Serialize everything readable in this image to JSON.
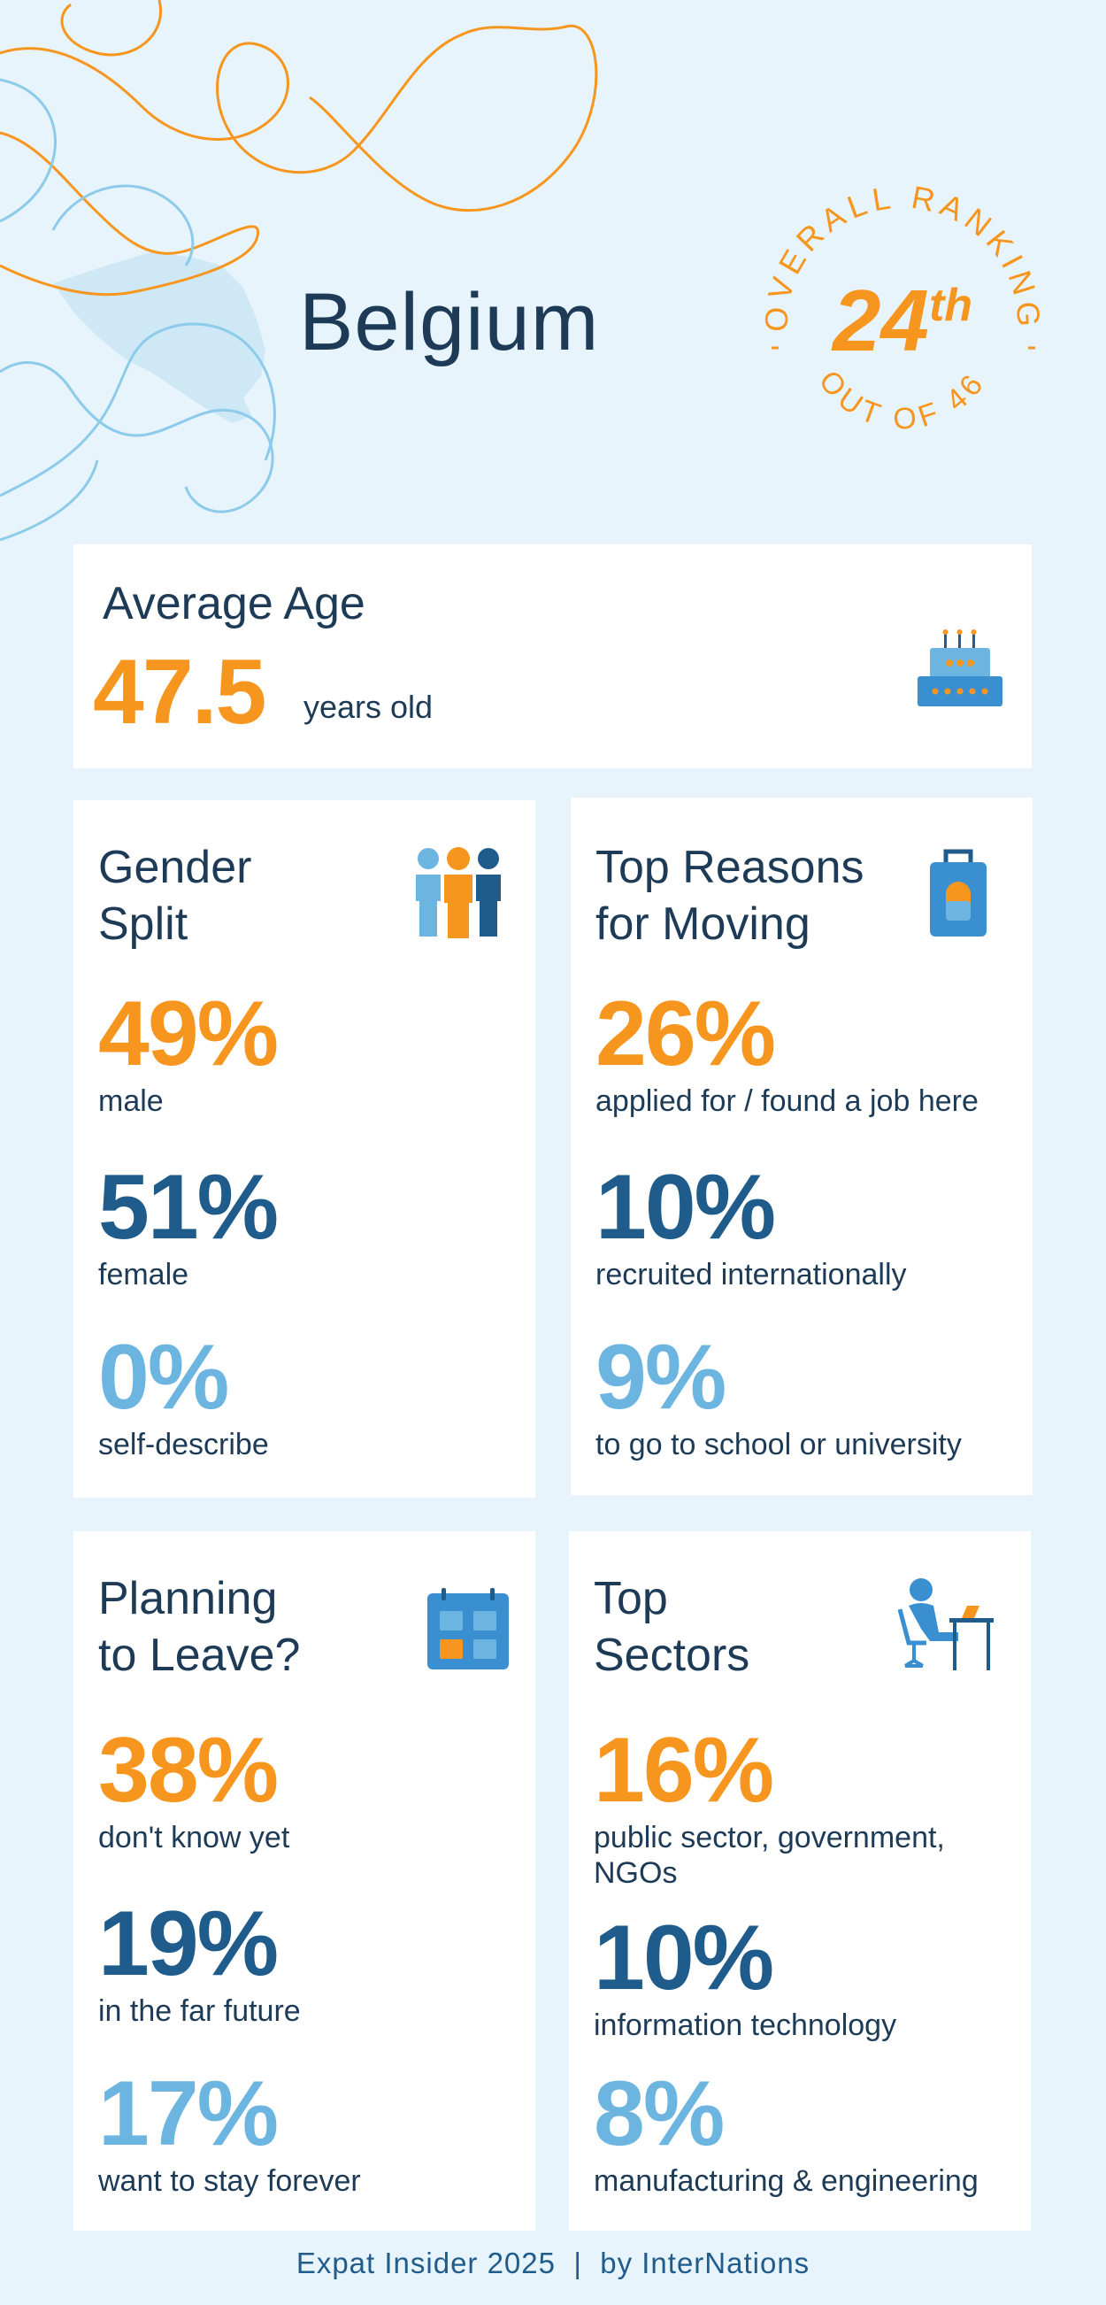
{
  "country": "Belgium",
  "ranking": {
    "arc_top": "OVERALL RANKING",
    "rank": "24",
    "suffix": "th",
    "arc_bottom": "OUT OF 46"
  },
  "average_age": {
    "title": "Average Age",
    "value": "47.5",
    "unit": "years old",
    "icon": "birthday-cake-icon"
  },
  "gender_split": {
    "title_line1": "Gender",
    "title_line2": "Split",
    "icon": "people-group-icon",
    "stats": [
      {
        "value": "49%",
        "label": "male"
      },
      {
        "value": "51%",
        "label": "female"
      },
      {
        "value": "0%",
        "label": "self-describe"
      }
    ]
  },
  "top_reasons": {
    "title_line1": "Top Reasons",
    "title_line2": "for Moving",
    "icon": "luggage-icon",
    "stats": [
      {
        "value": "26%",
        "label": "applied for / found a job here"
      },
      {
        "value": "10%",
        "label": "recruited internationally"
      },
      {
        "value": "9%",
        "label": "to go to school or university"
      }
    ]
  },
  "planning_to_leave": {
    "title_line1": "Planning",
    "title_line2": "to Leave?",
    "icon": "calendar-icon",
    "stats": [
      {
        "value": "38%",
        "label": "don't know yet"
      },
      {
        "value": "19%",
        "label": "in the far future"
      },
      {
        "value": "17%",
        "label": "want to stay forever"
      }
    ]
  },
  "top_sectors": {
    "title_line1": "Top",
    "title_line2": "Sectors",
    "icon": "person-at-desk-icon",
    "stats": [
      {
        "value": "16%",
        "label_line1": "public sector, government,",
        "label_line2": "NGOs"
      },
      {
        "value": "10%",
        "label_line1": "information technology"
      },
      {
        "value": "8%",
        "label_line1": "manufacturing & engineering"
      }
    ]
  },
  "footer": "Expat Insider 2025  |  by InterNations",
  "colors": {
    "background": "#e8f4fc",
    "orange": "#f7961e",
    "navy": "#1f5c8c",
    "light_blue": "#6cb5e1",
    "text": "#1d3b56"
  }
}
